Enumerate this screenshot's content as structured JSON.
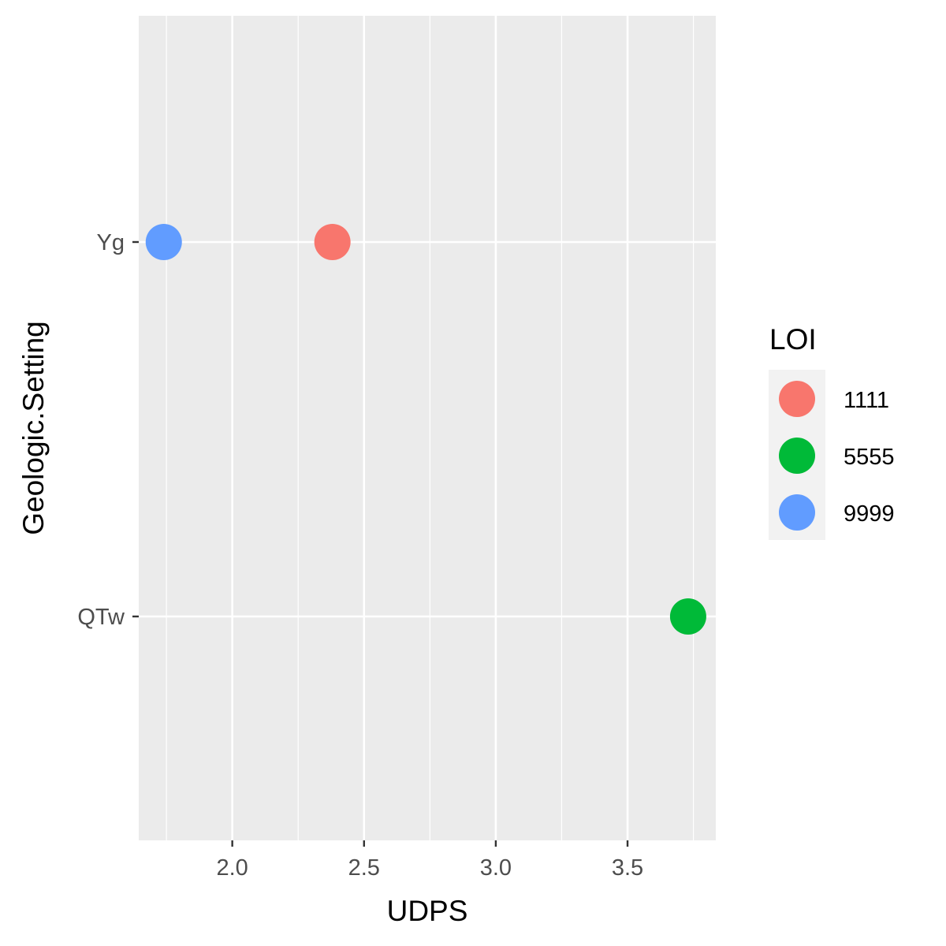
{
  "chart_data": {
    "type": "scatter",
    "xlabel": "UDPS",
    "ylabel": "Geologic.Setting",
    "x_ticks": [
      2.0,
      2.5,
      3.0,
      3.5
    ],
    "x_tick_labels": [
      "2.0",
      "2.5",
      "3.0",
      "3.5"
    ],
    "xlim": [
      1.645,
      3.835
    ],
    "y_categories": [
      "QTw",
      "Yg"
    ],
    "grid": true,
    "panel_background": "#EBEBEB",
    "legend": {
      "title": "LOI",
      "position": "right",
      "entries": [
        {
          "label": "1111",
          "color": "#F8766D"
        },
        {
          "label": "5555",
          "color": "#00BA38"
        },
        {
          "label": "9999",
          "color": "#619CFF"
        }
      ]
    },
    "points": [
      {
        "x": 1.74,
        "y": "Yg",
        "group": "9999",
        "color": "#619CFF"
      },
      {
        "x": 2.38,
        "y": "Yg",
        "group": "1111",
        "color": "#F8766D"
      },
      {
        "x": 3.73,
        "y": "QTw",
        "group": "5555",
        "color": "#00BA38"
      }
    ]
  }
}
